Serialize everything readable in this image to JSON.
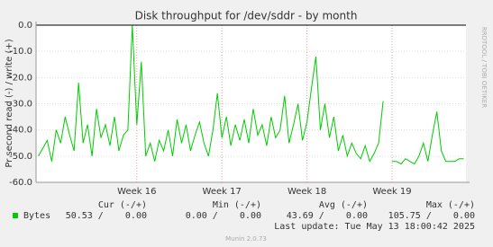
{
  "chart_data": {
    "type": "line",
    "title": "Disk throughput for /dev/sddr - by month",
    "y_label": "Pr second read (-) / write (+)",
    "side_text": "RRDTOOL / TOBI OETIKER",
    "footer": "Munin 2.0.73",
    "ylim": [
      -60,
      0
    ],
    "yticks": [
      {
        "value": 0,
        "label": "0.0"
      },
      {
        "value": -10,
        "label": "-10.0"
      },
      {
        "value": -20,
        "label": "-20.0"
      },
      {
        "value": -30,
        "label": "-30.0"
      },
      {
        "value": -40,
        "label": "-40.0"
      },
      {
        "value": -50,
        "label": "-50.0"
      },
      {
        "value": -60,
        "label": "-60.0"
      }
    ],
    "categories": [
      null,
      null,
      null,
      null,
      null,
      null,
      null,
      null,
      null,
      null,
      null,
      null,
      null,
      null,
      null,
      null,
      null,
      null,
      null,
      null,
      null,
      null,
      "Week 16",
      null,
      null,
      null,
      null,
      null,
      null,
      null,
      null,
      null,
      null,
      null,
      null,
      null,
      null,
      null,
      null,
      null,
      null,
      "Week 17",
      null,
      null,
      null,
      null,
      null,
      null,
      null,
      null,
      null,
      null,
      null,
      null,
      null,
      null,
      null,
      null,
      null,
      null,
      "Week 18",
      null,
      null,
      null,
      null,
      null,
      null,
      null,
      null,
      null,
      null,
      null,
      null,
      null,
      null,
      null,
      null,
      null,
      null,
      "Week 19",
      null,
      null,
      null,
      null,
      null,
      null,
      null,
      null,
      null,
      null,
      null,
      null,
      null,
      null,
      null,
      null
    ],
    "series": [
      {
        "name": "Bytes",
        "color": "#00cc00",
        "values": [
          -50,
          -47,
          -44,
          -52,
          -40,
          -45,
          -35,
          -42,
          -48,
          -22,
          -45,
          -38,
          -50,
          -32,
          -43,
          -38,
          -46,
          -35,
          -48,
          -42,
          -40,
          0,
          -38,
          -14,
          -50,
          -45,
          -52,
          -44,
          -48,
          -40,
          -50,
          -36,
          -45,
          -38,
          -48,
          -42,
          -37,
          -45,
          -50,
          -40,
          -26,
          -43,
          -35,
          -46,
          -38,
          -44,
          -36,
          -45,
          -32,
          -42,
          -38,
          -46,
          -35,
          -43,
          -40,
          -27,
          -45,
          -38,
          -30,
          -44,
          -37,
          -24,
          -12,
          -40,
          -30,
          -43,
          -35,
          -48,
          -42,
          -50,
          -45,
          -49,
          -51,
          -46,
          -52,
          -49,
          -45,
          -29,
          null,
          -52,
          -52,
          -53,
          -51,
          -52,
          -53,
          -50,
          -45,
          -52,
          -42,
          -33,
          -48,
          -52,
          -52,
          -52,
          -51,
          -51
        ]
      }
    ],
    "legend_table": {
      "headers": [
        "Cur (-/+)",
        "Min (-/+)",
        "Avg (-/+)",
        "Max (-/+)"
      ],
      "cells": [
        "50.53 /    0.00",
        "0.00 /    0.00",
        "43.69 /    0.00",
        "105.75 /    0.00"
      ],
      "last_update": "Last update: Tue May 13 18:00:42 2025"
    }
  }
}
